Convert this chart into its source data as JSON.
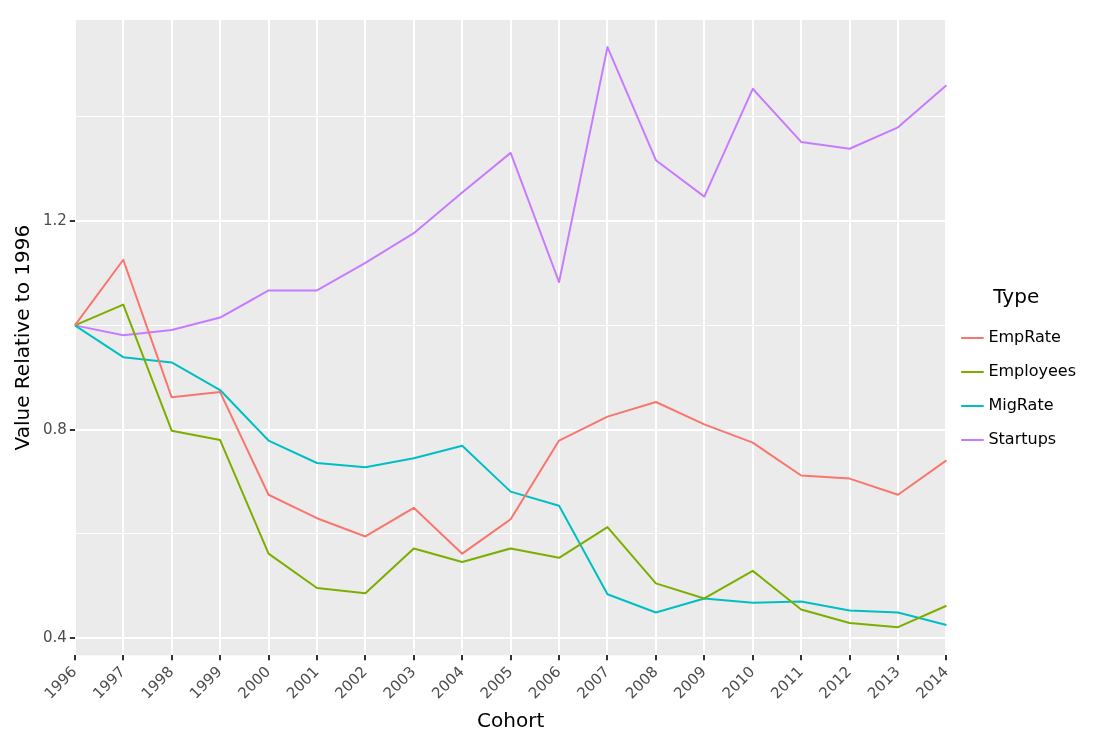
{
  "chart_data": {
    "type": "line",
    "xlabel": "Cohort",
    "ylabel": "Value Relative to 1996",
    "legend_title": "Type",
    "legend": "right",
    "grid": true,
    "categories": [
      "1996",
      "1997",
      "1998",
      "1999",
      "2000",
      "2001",
      "2002",
      "2003",
      "2004",
      "2005",
      "2006",
      "2007",
      "2008",
      "2009",
      "2010",
      "2011",
      "2012",
      "2013",
      "2014"
    ],
    "ylim": [
      0.367,
      1.586
    ],
    "yticks": [
      0.4,
      {
        "value": 0.6,
        "label": null
      },
      0.8,
      {
        "value": 1.0,
        "label": null
      },
      1.2,
      {
        "value": 1.4,
        "label": null
      }
    ],
    "series": [
      {
        "name": "EmpRate",
        "color": "#f8766d",
        "values": [
          1.0,
          1.126,
          0.862,
          0.872,
          0.675,
          0.63,
          0.595,
          0.65,
          0.562,
          0.628,
          0.779,
          0.825,
          0.853,
          0.81,
          0.775,
          0.712,
          0.706,
          0.675,
          0.741
        ]
      },
      {
        "name": "Employees",
        "color": "#7cae00",
        "values": [
          1.0,
          1.04,
          0.798,
          0.78,
          0.562,
          0.496,
          0.486,
          0.572,
          0.546,
          0.572,
          0.554,
          0.613,
          0.505,
          0.476,
          0.529,
          0.455,
          0.429,
          0.421,
          0.462
        ]
      },
      {
        "name": "MigRate",
        "color": "#00bfc4",
        "values": [
          1.0,
          0.939,
          0.929,
          0.876,
          0.779,
          0.736,
          0.728,
          0.745,
          0.769,
          0.681,
          0.654,
          0.484,
          0.449,
          0.476,
          0.468,
          0.47,
          0.453,
          0.449,
          0.425
        ]
      },
      {
        "name": "Startups",
        "color": "#c77cff",
        "values": [
          1.0,
          0.981,
          0.991,
          1.015,
          1.067,
          1.067,
          1.12,
          1.177,
          1.255,
          1.331,
          1.083,
          1.534,
          1.317,
          1.247,
          1.454,
          1.352,
          1.339,
          1.38,
          1.461
        ]
      }
    ]
  }
}
